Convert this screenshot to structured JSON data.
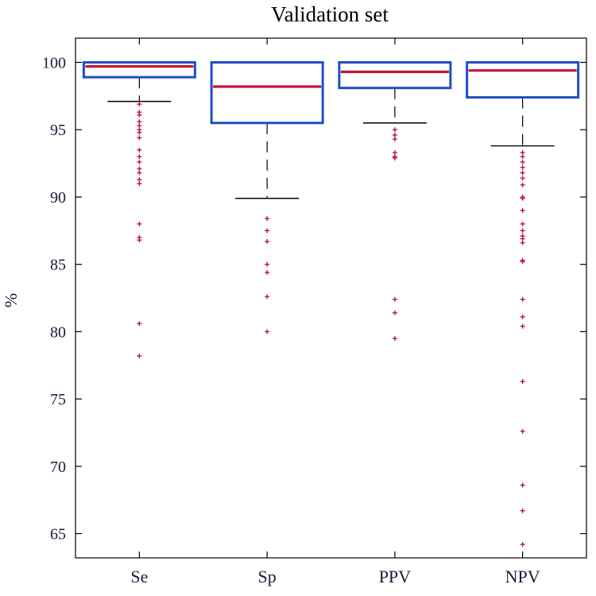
{
  "chart_data": {
    "type": "box",
    "title": "Validation set",
    "xlabel": "",
    "ylabel": "%",
    "ylim": [
      63.2,
      101.8
    ],
    "yticks": [
      65,
      70,
      75,
      80,
      85,
      90,
      95,
      100
    ],
    "grid": false,
    "categories": [
      "Se",
      "Sp",
      "PPV",
      "NPV"
    ],
    "boxes": [
      {
        "category": "Se",
        "whisker_low": 97.1,
        "q1": 98.9,
        "median": 99.7,
        "q3": 100,
        "whisker_high": 100,
        "outliers": [
          96.9,
          96.3,
          96.1,
          95.6,
          95.3,
          95.0,
          94.8,
          94.4,
          93.5,
          93.0,
          92.6,
          92.1,
          91.8,
          91.3,
          91.0,
          88.0,
          87.0,
          86.8,
          80.6,
          78.2
        ]
      },
      {
        "category": "Sp",
        "whisker_low": 89.9,
        "q1": 95.5,
        "median": 98.2,
        "q3": 100,
        "whisker_high": 100,
        "outliers": [
          88.4,
          87.5,
          86.7,
          85.0,
          84.4,
          82.6,
          80.0
        ]
      },
      {
        "category": "PPV",
        "whisker_low": 95.5,
        "q1": 98.1,
        "median": 99.3,
        "q3": 100,
        "whisker_high": 100,
        "outliers": [
          95.0,
          94.6,
          94.3,
          93.3,
          93.0,
          92.9,
          82.4,
          81.4,
          79.5
        ]
      },
      {
        "category": "NPV",
        "whisker_low": 93.8,
        "q1": 97.4,
        "median": 99.4,
        "q3": 100,
        "whisker_high": 100,
        "outliers": [
          93.3,
          93.0,
          92.6,
          92.2,
          91.8,
          91.4,
          90.9,
          90.0,
          89.9,
          89.0,
          88.0,
          87.5,
          87.1,
          86.9,
          86.6,
          85.3,
          85.2,
          82.4,
          81.1,
          80.4,
          76.3,
          72.6,
          68.6,
          66.7,
          64.2
        ]
      }
    ],
    "colors": {
      "box": "#1f4fc1",
      "median": "#c0143c",
      "outlier": "#c0143c",
      "whisker": "#000000",
      "axis": "#000000",
      "text": "#1b1b3a"
    }
  }
}
